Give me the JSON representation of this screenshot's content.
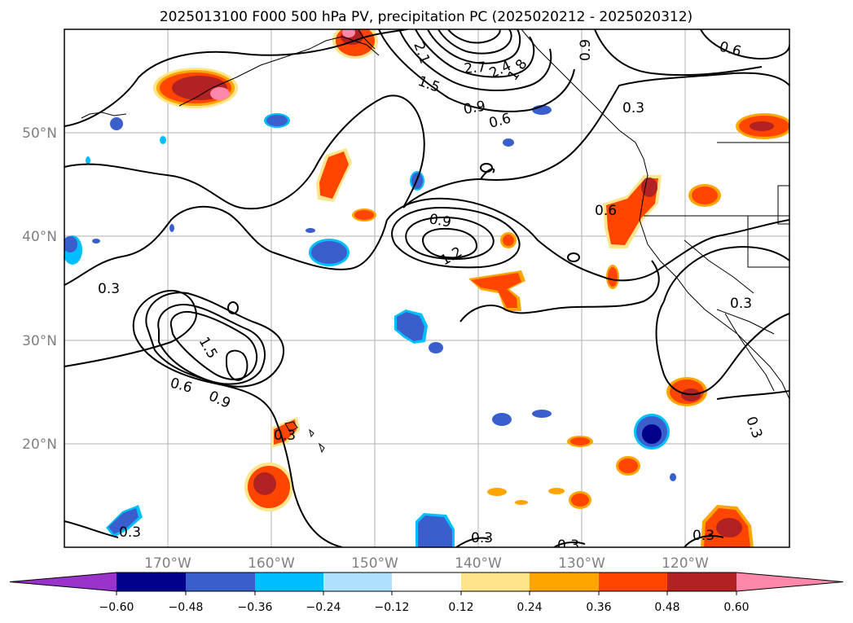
{
  "title": "2025013100 F000 500 hPa PV, precipitation PC (2025020212 - 2025020312)",
  "map": {
    "lon_labels": [
      "170°W",
      "160°W",
      "150°W",
      "140°W",
      "130°W",
      "120°W"
    ],
    "lat_labels": [
      "50°N",
      "40°N",
      "30°N",
      "20°N"
    ],
    "contour_labels": [
      "0.3",
      "0.6",
      "0.9",
      "1.2",
      "1.5",
      "1.8",
      "2.1",
      "2.4",
      "2.7"
    ]
  },
  "colorbar": {
    "tick_labels": [
      "−0.60",
      "−0.48",
      "−0.36",
      "−0.24",
      "−0.12",
      "0.12",
      "0.24",
      "0.36",
      "0.48",
      "0.60"
    ],
    "colors": [
      "#9933cc",
      "#00008b",
      "#3a5fcd",
      "#00bfff",
      "#b0e2ff",
      "#ffffff",
      "#ffe48a",
      "#ffa500",
      "#ff4500",
      "#b22222",
      "#ff88aa"
    ]
  },
  "colors": {
    "land_outline": "#000000",
    "contour": "#000000",
    "grid": "#b0b0b0"
  }
}
